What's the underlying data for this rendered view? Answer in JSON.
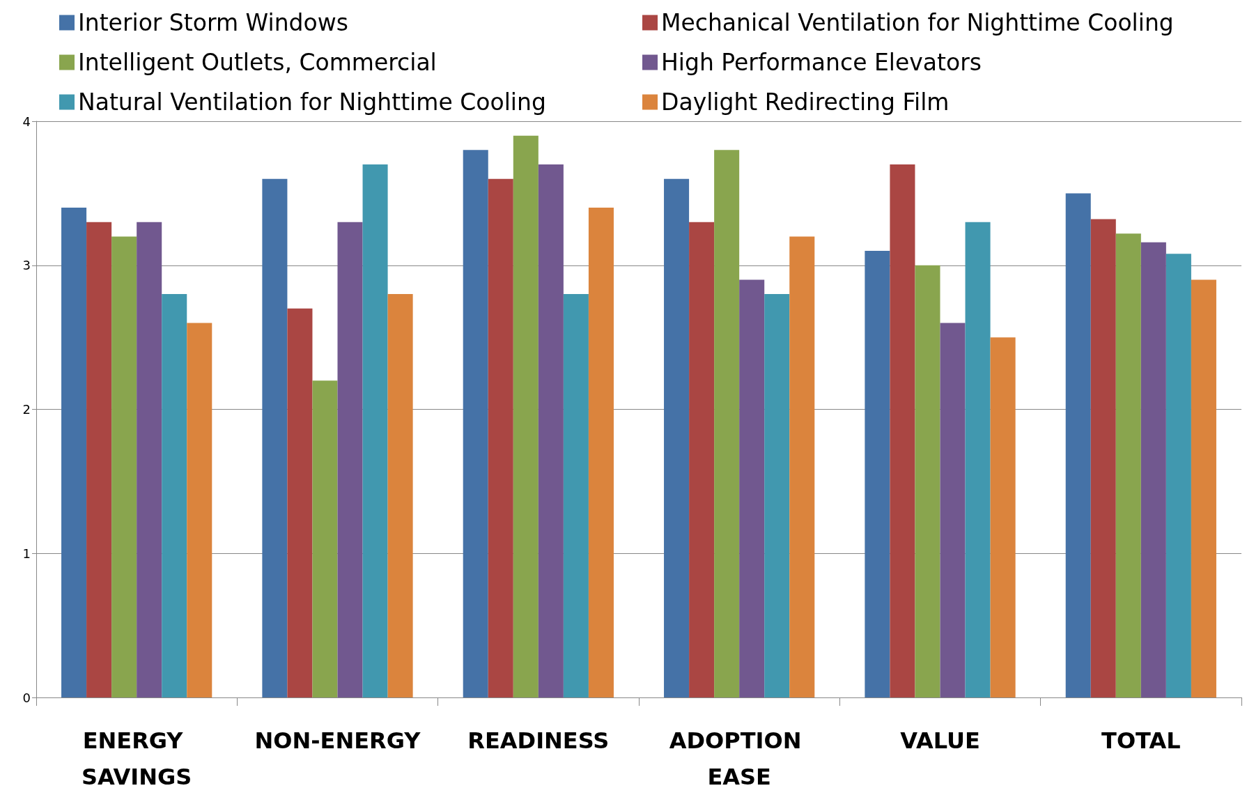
{
  "chart_data": {
    "type": "bar",
    "categories": [
      "ENERGY SAVINGS",
      "NON-ENERGY",
      "READINESS",
      "ADOPTION EASE",
      "VALUE",
      "TOTAL"
    ],
    "series": [
      {
        "name": "Interior Storm Windows",
        "color": "#4572a7",
        "values": [
          3.4,
          3.6,
          3.8,
          3.6,
          3.1,
          3.5
        ]
      },
      {
        "name": "Mechanical Ventilation for Nighttime Cooling",
        "color": "#aa4643",
        "values": [
          3.3,
          2.7,
          3.6,
          3.3,
          3.7,
          3.32
        ]
      },
      {
        "name": "Intelligent Outlets, Commercial",
        "color": "#89a54e",
        "values": [
          3.2,
          2.2,
          3.9,
          3.8,
          3.0,
          3.22
        ]
      },
      {
        "name": "High Performance Elevators",
        "color": "#71588f",
        "values": [
          3.3,
          3.3,
          3.7,
          2.9,
          2.6,
          3.16
        ]
      },
      {
        "name": "Natural Ventilation for Nighttime Cooling",
        "color": "#4198af",
        "values": [
          2.8,
          3.7,
          2.8,
          2.8,
          3.3,
          3.08
        ]
      },
      {
        "name": "Daylight Redirecting Film",
        "color": "#db843d",
        "values": [
          2.6,
          2.8,
          3.4,
          3.2,
          2.5,
          2.9
        ]
      }
    ],
    "ylim": [
      0,
      4
    ],
    "yticks": [
      0,
      1,
      2,
      3,
      4
    ],
    "grid": "y",
    "legend": "top"
  }
}
